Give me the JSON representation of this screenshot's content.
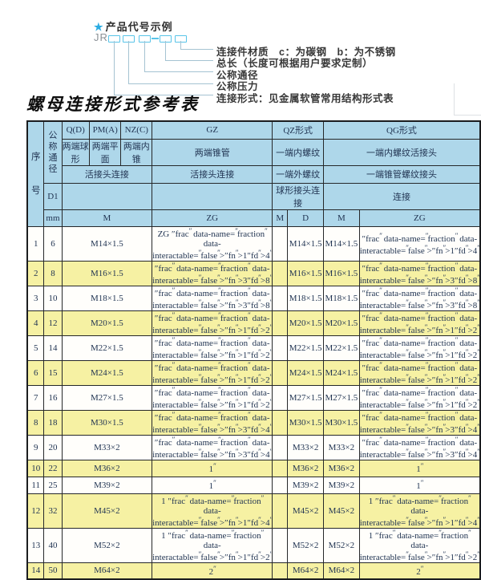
{
  "diagram": {
    "star_icon": "★",
    "title": "产品代号示例",
    "prefix": "JR",
    "labels": [
      "连接件材质　c：为碳钢　b：为不锈钢",
      "总长（长度可根据用户要求定制）",
      "公称通径",
      "公称压力",
      "连接形式：见金属软管常用结构形式表"
    ]
  },
  "heading": "螺母连接形式参考表",
  "colors": {
    "header_bg": "#aed7ea",
    "stripe_yellow": "#f6f1a3",
    "accent_cyan": "#58c4e8",
    "border": "#26282a"
  },
  "table": {
    "header": {
      "serial": "序号",
      "dn": "公称通径",
      "d1": "D1",
      "mm": "mm",
      "q_code": "Q(D)",
      "q_desc": "两端球形",
      "pm_code": "PM(A)",
      "pm_desc": "两端平面",
      "nz_code": "NZ(C)",
      "nz_desc": "两端内锥",
      "gz_code": "GZ",
      "gz_desc": "两端锥管",
      "qpn_joint": "活接头连接",
      "gz_joint": "活接头连接",
      "m_group": "M",
      "gz_sub": "ZG",
      "qz_title": "QZ形式",
      "qz_row2": "一端内螺纹",
      "qz_row3": "一端外螺纹",
      "qz_row4": "球形接头连接",
      "qz_m": "M",
      "qz_d": "D",
      "qg_title": "QG形式",
      "qg_row2": "一端内螺纹活接头",
      "qg_row3": "一端锥管螺纹接头",
      "qg_row4": "连接",
      "qg_m": "M",
      "qg_zg": "ZG"
    },
    "rows": [
      {
        "no": "1",
        "mm": "6",
        "m": "M14×1.5",
        "gz": "ZG 1/4\"",
        "qz_m": "",
        "qz_d": "M14×1.5",
        "qg_m": "M14×1.5",
        "qg_zg": "1/4\""
      },
      {
        "no": "2",
        "mm": "8",
        "m": "M16×1.5",
        "gz": "3/8\"",
        "qz_m": "",
        "qz_d": "M16×1.5",
        "qg_m": "M16×1.5",
        "qg_zg": "3/8\""
      },
      {
        "no": "3",
        "mm": "10",
        "m": "M18×1.5",
        "gz": "3/8\"",
        "qz_m": "",
        "qz_d": "M18×1.5",
        "qg_m": "M18×1.5",
        "qg_zg": "3/8\""
      },
      {
        "no": "4",
        "mm": "12",
        "m": "M20×1.5",
        "gz": "1/2\"",
        "qz_m": "",
        "qz_d": "M20×1.5",
        "qg_m": "M20×1.5",
        "qg_zg": "1/2\""
      },
      {
        "no": "5",
        "mm": "14",
        "m": "M22×1.5",
        "gz": "1/2\"",
        "qz_m": "",
        "qz_d": "M22×1.5",
        "qg_m": "M22×1.5",
        "qg_zg": "1/2\""
      },
      {
        "no": "6",
        "mm": "15",
        "m": "M24×1.5",
        "gz": "1/2\"",
        "qz_m": "",
        "qz_d": "M24×1.5",
        "qg_m": "M24×1.5",
        "qg_zg": "1/2\""
      },
      {
        "no": "7",
        "mm": "16",
        "m": "M27×1.5",
        "gz": "1/2\"",
        "qz_m": "",
        "qz_d": "M27×1.5",
        "qg_m": "M27×1.5",
        "qg_zg": "1/2\""
      },
      {
        "no": "8",
        "mm": "18",
        "m": "M30×1.5",
        "gz": "3/4\"",
        "qz_m": "",
        "qz_d": "M30×1.5",
        "qg_m": "M30×1.5",
        "qg_zg": "3/4\""
      },
      {
        "no": "9",
        "mm": "20",
        "m": "M33×2",
        "gz": "3/4\"",
        "qz_m": "",
        "qz_d": "M33×2",
        "qg_m": "M33×2",
        "qg_zg": "3/4\""
      },
      {
        "no": "10",
        "mm": "22",
        "m": "M36×2",
        "gz": "1\"",
        "qz_m": "",
        "qz_d": "M36×2",
        "qg_m": "M36×2",
        "qg_zg": "1\""
      },
      {
        "no": "11",
        "mm": "25",
        "m": "M39×2",
        "gz": "1\"",
        "qz_m": "",
        "qz_d": "M39×2",
        "qg_m": "M39×2",
        "qg_zg": "1\""
      },
      {
        "no": "12",
        "mm": "32",
        "m": "M45×2",
        "gz": "1 1/4\"",
        "qz_m": "",
        "qz_d": "M45×2",
        "qg_m": "M45×2",
        "qg_zg": "1 1/4\""
      },
      {
        "no": "13",
        "mm": "40",
        "m": "M52×2",
        "gz": "1 1/2\"",
        "qz_m": "",
        "qz_d": "M52×2",
        "qg_m": "M52×2",
        "qg_zg": "1 1/2\""
      },
      {
        "no": "14",
        "mm": "50",
        "m": "M64×2",
        "gz": "2\"",
        "qz_m": "",
        "qz_d": "M64×2",
        "qg_m": "M64×2",
        "qg_zg": "2\""
      }
    ]
  }
}
